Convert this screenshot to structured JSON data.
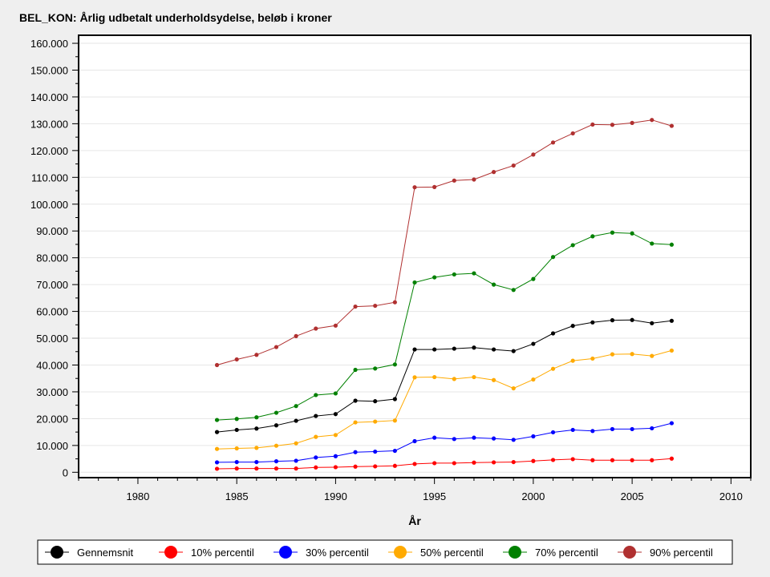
{
  "chart_data": {
    "type": "line",
    "title": "BEL_KON: Årlig udbetalt underholdsydelse, beløb i kroner",
    "xlabel": "År",
    "ylabel": "",
    "xlim": [
      1977,
      2011
    ],
    "ylim": [
      -2000,
      163000
    ],
    "xticks": [
      1980,
      1985,
      1990,
      1995,
      2000,
      2005,
      2010
    ],
    "xtick_labels": [
      "1980",
      "1985",
      "1990",
      "1995",
      "2000",
      "2005",
      "2010"
    ],
    "yticks": [
      0,
      10000,
      20000,
      30000,
      40000,
      50000,
      60000,
      70000,
      80000,
      90000,
      100000,
      110000,
      120000,
      130000,
      140000,
      150000,
      160000
    ],
    "ytick_labels": [
      "0",
      "10.000",
      "20.000",
      "30.000",
      "40.000",
      "50.000",
      "60.000",
      "70.000",
      "80.000",
      "90.000",
      "100.000",
      "110.000",
      "120.000",
      "130.000",
      "140.000",
      "150.000",
      "160.000"
    ],
    "grid": true,
    "legend_position": "bottom",
    "x": [
      1984,
      1985,
      1986,
      1987,
      1988,
      1989,
      1990,
      1991,
      1992,
      1993,
      1994,
      1995,
      1996,
      1997,
      1998,
      1999,
      2000,
      2001,
      2002,
      2003,
      2004,
      2005,
      2006,
      2007
    ],
    "series": [
      {
        "name": "Gennemsnit",
        "color": "#000000",
        "values": [
          15000,
          15800,
          16300,
          17500,
          19200,
          21000,
          21700,
          26700,
          26500,
          27300,
          45800,
          45800,
          46100,
          46500,
          45800,
          45200,
          47900,
          51800,
          54600,
          55900,
          56700,
          56800,
          55600,
          56500
        ]
      },
      {
        "name": "10% percentil",
        "color": "#ff0000",
        "values": [
          1300,
          1400,
          1400,
          1400,
          1400,
          1800,
          1900,
          2100,
          2200,
          2400,
          3100,
          3400,
          3400,
          3600,
          3700,
          3800,
          4200,
          4600,
          4900,
          4500,
          4500,
          4500,
          4500,
          5100
        ]
      },
      {
        "name": "30% percentil",
        "color": "#0000ff",
        "values": [
          3700,
          3800,
          3800,
          4100,
          4300,
          5500,
          6000,
          7500,
          7700,
          8000,
          11600,
          12900,
          12400,
          12900,
          12600,
          12100,
          13400,
          14900,
          15800,
          15400,
          16100,
          16100,
          16400,
          18300
        ]
      },
      {
        "name": "50% percentil",
        "color": "#ffaa00",
        "values": [
          8700,
          8900,
          9100,
          9900,
          10800,
          13200,
          13900,
          18600,
          18900,
          19300,
          35400,
          35500,
          34800,
          35500,
          34400,
          31300,
          34600,
          38600,
          41600,
          42400,
          44000,
          44100,
          43400,
          45400
        ]
      },
      {
        "name": "70% percentil",
        "color": "#008000",
        "values": [
          19500,
          19900,
          20500,
          22200,
          24700,
          28800,
          29400,
          38200,
          38700,
          40200,
          70800,
          72700,
          73800,
          74200,
          70000,
          68000,
          72100,
          80300,
          84700,
          88000,
          89400,
          89100,
          85300,
          84900
        ]
      },
      {
        "name": "90% percentil",
        "color": "#b03030",
        "values": [
          40000,
          42100,
          43800,
          46700,
          50800,
          53600,
          54700,
          61800,
          62100,
          63400,
          106300,
          106400,
          108800,
          109200,
          112000,
          114400,
          118500,
          123000,
          126400,
          129700,
          129600,
          130300,
          131400,
          129200
        ]
      }
    ]
  }
}
